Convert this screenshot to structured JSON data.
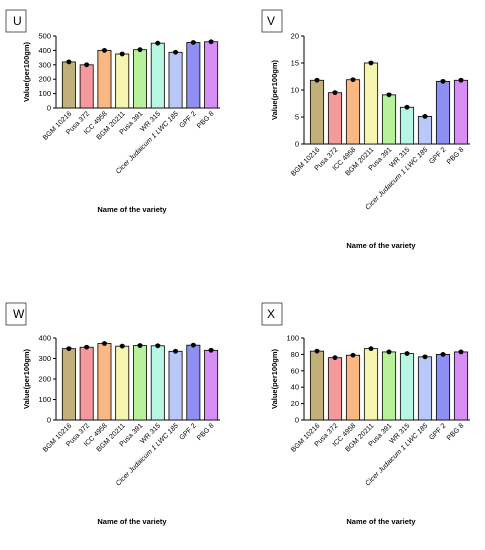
{
  "chart_data": [
    {
      "panel": "U",
      "type": "bar",
      "ylabel": "Value(per100gm)",
      "xlabel": "Name of the variety",
      "ylim": [
        0,
        500
      ],
      "yticks": [
        0,
        100,
        200,
        300,
        400,
        500
      ],
      "categories": [
        "BGM 10216",
        "Pusa 372",
        "ICC 4958",
        "BGM 20211",
        "Pusa 391",
        "WR 315",
        "Cicer Judaicum 1 LWC 185",
        "GPF 2",
        "PBG 8"
      ],
      "values": [
        320,
        300,
        400,
        375,
        405,
        450,
        387,
        455,
        460
      ],
      "errors": [
        5,
        5,
        5,
        5,
        5,
        5,
        5,
        5,
        5
      ]
    },
    {
      "panel": "V",
      "type": "bar",
      "ylabel": "Value(per100gm)",
      "xlabel": "Name of the variety",
      "ylim": [
        0,
        20
      ],
      "yticks": [
        0,
        5,
        10,
        15,
        20
      ],
      "categories": [
        "BGM 10216",
        "Pusa 372",
        "ICC 4958",
        "BGM 20211",
        "Pusa 391",
        "WR 315",
        "Cicer Judaicum 1 LWC 185",
        "GPF 2",
        "PBG 8"
      ],
      "values": [
        11.8,
        9.5,
        11.9,
        15,
        9.1,
        6.8,
        5.1,
        11.6,
        11.8
      ],
      "errors": [
        0.2,
        0.2,
        0.2,
        0.2,
        0.2,
        0.2,
        0.2,
        0.2,
        0.2
      ]
    },
    {
      "panel": "W",
      "type": "bar",
      "ylabel": "Value(per100gm)",
      "xlabel": "Name of the variety",
      "ylim": [
        0,
        400
      ],
      "yticks": [
        0,
        100,
        200,
        300,
        400
      ],
      "categories": [
        "BGM 10216",
        "Pusa 372",
        "ICC 4958",
        "BGM 20211",
        "Pusa 391",
        "WR 315",
        "Cicer Judaicum 1 LWC 185",
        "GPF 2",
        "PBG 8"
      ],
      "values": [
        348,
        355,
        373,
        360,
        363,
        362,
        335,
        365,
        340
      ],
      "errors": [
        5,
        5,
        5,
        5,
        5,
        5,
        5,
        5,
        5
      ]
    },
    {
      "panel": "X",
      "type": "bar",
      "ylabel": "Value(per100gm)",
      "xlabel": "Name of the variety",
      "ylim": [
        0,
        100
      ],
      "yticks": [
        0,
        20,
        40,
        60,
        80,
        100
      ],
      "categories": [
        "BGM 10216",
        "Pusa 372",
        "ICC 4958",
        "BGM 20211",
        "Pusa 391",
        "WR 315",
        "Cicer Judaicum 1 LWC 185",
        "GPF 2",
        "PBG 8"
      ],
      "values": [
        84,
        76,
        79,
        87,
        83,
        81,
        77,
        80,
        83
      ],
      "errors": [
        1,
        1,
        1,
        1,
        1,
        1,
        1,
        1,
        1
      ]
    }
  ],
  "colors": [
    "#c2b07a",
    "#f4999c",
    "#fbb882",
    "#f5f5b0",
    "#b7f29a",
    "#b8f6e4",
    "#b8c8f8",
    "#8e8ef5",
    "#d78ef5"
  ]
}
